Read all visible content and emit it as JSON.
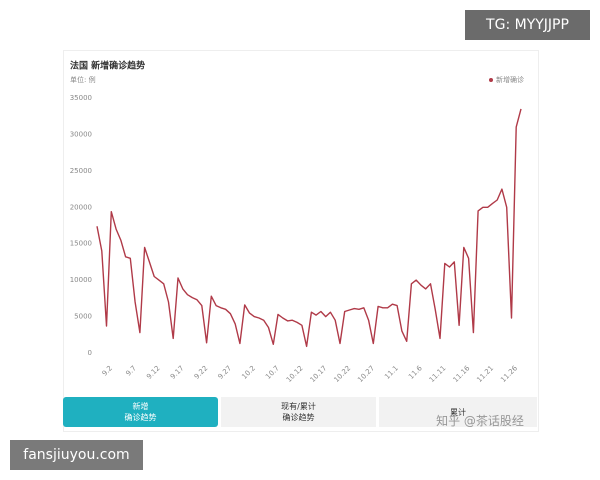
{
  "chart_data": {
    "type": "line",
    "title": "法国 新增确诊趋势",
    "unit_label": "单位: 例",
    "categories": [
      null,
      null,
      null,
      "9.2",
      null,
      null,
      null,
      null,
      "9.7",
      null,
      null,
      null,
      null,
      "9.12",
      null,
      null,
      null,
      null,
      "9.17",
      null,
      null,
      null,
      null,
      "9.22",
      null,
      null,
      null,
      null,
      "9.27",
      null,
      null,
      null,
      null,
      "10.2",
      null,
      null,
      null,
      null,
      "10.7",
      null,
      null,
      null,
      null,
      "10.12",
      null,
      null,
      null,
      null,
      "10.17",
      null,
      null,
      null,
      null,
      "10.22",
      null,
      null,
      null,
      null,
      "10.27",
      null,
      null,
      null,
      null,
      "11.1",
      null,
      null,
      null,
      null,
      "11.6",
      null,
      null,
      null,
      null,
      "11.11",
      null,
      null,
      null,
      null,
      "11.16",
      null,
      null,
      null,
      null,
      "11.21",
      null,
      null,
      null,
      null,
      "11.26",
      null
    ],
    "series": [
      {
        "name": "新增确诊",
        "color": "#b03a48",
        "values": [
          17400,
          14000,
          3700,
          19400,
          17000,
          15500,
          13200,
          13000,
          7000,
          2800,
          14500,
          12500,
          10500,
          10000,
          9500,
          7000,
          2000,
          10300,
          8800,
          8000,
          7600,
          7300,
          6500,
          1400,
          7800,
          6500,
          6200,
          6000,
          5400,
          4000,
          1300,
          6600,
          5500,
          5000,
          4800,
          4500,
          3500,
          1200,
          5300,
          4800,
          4400,
          4500,
          4200,
          3800,
          900,
          5600,
          5200,
          5700,
          5000,
          5600,
          4500,
          1300,
          5700,
          5900,
          6100,
          6000,
          6200,
          4500,
          1300,
          6400,
          6200,
          6200,
          6700,
          6500,
          3000,
          1600,
          9500,
          10000,
          9300,
          8800,
          9500,
          6000,
          2000,
          12300,
          11800,
          12500,
          3800,
          14500,
          13000,
          2800,
          19500,
          20000,
          20000,
          20500,
          21000,
          22500,
          20000,
          4800,
          31000,
          33500
        ]
      }
    ],
    "ylim": [
      0,
      35000
    ],
    "yticks": [
      0,
      5000,
      10000,
      15000,
      20000,
      25000,
      30000,
      35000
    ],
    "grid": false,
    "legend": "top-right"
  },
  "tabs": [
    {
      "lines": [
        "新增",
        "确诊趋势"
      ],
      "active": true
    },
    {
      "lines": [
        "现有/累计",
        "确诊趋势"
      ],
      "active": false
    },
    {
      "lines": [
        "累计"
      ],
      "active": false
    }
  ],
  "watermarks": {
    "top": "TG: MYYJJPP",
    "bottom": "fansjiuyou.com",
    "overlay": "知乎 @茶话股经"
  }
}
